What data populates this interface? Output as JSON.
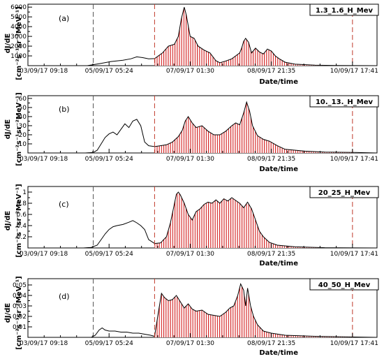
{
  "chart_data": [
    {
      "type": "area",
      "letter": "(a)",
      "title": "1.3_1.6_H_Mev",
      "ylabel": "dJ/dE",
      "yunit": "[cm⁻²s⁻¹sr⁻²MeV⁻¹]",
      "xlabel": "Date/time",
      "xticks": [
        "03/09/17 09:18",
        "05/09/17 05:24",
        "07/09/17 01:30",
        "08/09/17 21:35",
        "10/09/17 17:41"
      ],
      "yticks": [
        1000,
        2000,
        3000,
        4000,
        5000,
        6000
      ],
      "ylim": [
        0,
        6300
      ],
      "xlim_hours": [
        0,
        176.4
      ],
      "vertical_dashed_lines_hours": [
        33,
        64,
        164
      ],
      "red_hatched_range_hours": [
        64,
        164
      ],
      "points": [
        [
          0,
          0
        ],
        [
          30,
          0
        ],
        [
          36,
          200
        ],
        [
          42,
          420
        ],
        [
          48,
          560
        ],
        [
          52,
          700
        ],
        [
          55,
          900
        ],
        [
          58,
          820
        ],
        [
          61,
          700
        ],
        [
          64,
          720
        ],
        [
          68,
          1300
        ],
        [
          71,
          2000
        ],
        [
          74,
          2200
        ],
        [
          76,
          3000
        ],
        [
          77.5,
          4800
        ],
        [
          79,
          6000
        ],
        [
          80,
          5200
        ],
        [
          82,
          3000
        ],
        [
          84,
          2800
        ],
        [
          86,
          2000
        ],
        [
          89,
          1600
        ],
        [
          92,
          1300
        ],
        [
          95,
          500
        ],
        [
          97,
          300
        ],
        [
          100,
          480
        ],
        [
          103,
          700
        ],
        [
          105,
          1000
        ],
        [
          107,
          1300
        ],
        [
          108,
          1800
        ],
        [
          109,
          2500
        ],
        [
          110,
          2800
        ],
        [
          111.5,
          2400
        ],
        [
          113,
          1300
        ],
        [
          115,
          1800
        ],
        [
          117,
          1400
        ],
        [
          119,
          1200
        ],
        [
          121,
          1700
        ],
        [
          123,
          1500
        ],
        [
          125,
          1000
        ],
        [
          127,
          700
        ],
        [
          130,
          350
        ],
        [
          135,
          150
        ],
        [
          145,
          60
        ],
        [
          155,
          20
        ],
        [
          165,
          5
        ],
        [
          176,
          0
        ]
      ]
    },
    {
      "type": "area",
      "letter": "(b)",
      "title": "10._13._H_Mev",
      "ylabel": "dJ/dE",
      "yunit": "[cm⁻²s⁻¹sr⁻²MeV⁻¹]",
      "xlabel": "Date/time",
      "xticks": [
        "03/09/17 09:18",
        "05/09/17 05:24",
        "07/09/17 01:30",
        "08/09/17 21:35",
        "10/09/17 17:41"
      ],
      "yticks": [
        10,
        20,
        30,
        40,
        50,
        60
      ],
      "ylim": [
        0,
        63
      ],
      "xlim_hours": [
        0,
        176.4
      ],
      "vertical_dashed_lines_hours": [
        33,
        64,
        164
      ],
      "red_hatched_range_hours": [
        64,
        164
      ],
      "points": [
        [
          0,
          0
        ],
        [
          29,
          0
        ],
        [
          33,
          0.5
        ],
        [
          35,
          3
        ],
        [
          37,
          10
        ],
        [
          39,
          17
        ],
        [
          41,
          21
        ],
        [
          43,
          23
        ],
        [
          45,
          20
        ],
        [
          47,
          26
        ],
        [
          49,
          32
        ],
        [
          51,
          28
        ],
        [
          53,
          35
        ],
        [
          55,
          37
        ],
        [
          57,
          30
        ],
        [
          59,
          12
        ],
        [
          61,
          8
        ],
        [
          64,
          7
        ],
        [
          67,
          8
        ],
        [
          70,
          9
        ],
        [
          73,
          12
        ],
        [
          76,
          18
        ],
        [
          78,
          25
        ],
        [
          79.5,
          35
        ],
        [
          81,
          40
        ],
        [
          83,
          33
        ],
        [
          85,
          28
        ],
        [
          88,
          30
        ],
        [
          91,
          24
        ],
        [
          94,
          20
        ],
        [
          97,
          20
        ],
        [
          100,
          24
        ],
        [
          103,
          30
        ],
        [
          105,
          33
        ],
        [
          107,
          31
        ],
        [
          109,
          44
        ],
        [
          110.5,
          56
        ],
        [
          112,
          46
        ],
        [
          113.5,
          30
        ],
        [
          116,
          19
        ],
        [
          119,
          15
        ],
        [
          122,
          13
        ],
        [
          126,
          8
        ],
        [
          130,
          4
        ],
        [
          140,
          2
        ],
        [
          150,
          1
        ],
        [
          165,
          0.5
        ],
        [
          176,
          0
        ]
      ]
    },
    {
      "type": "area",
      "letter": "(c)",
      "title": "20_25_H_Mev",
      "ylabel": "dJ/dE",
      "yunit": "[cm⁻²s⁻¹sr⁻²MeV⁻¹]",
      "xlabel": "Date/time",
      "xticks": [
        "03/09/17 09:18",
        "05/09/17 05:24",
        "07/09/17 01:30",
        "08/09/17 21:35",
        "10/09/17 17:41"
      ],
      "yticks": [
        0.2,
        0.4,
        0.6,
        0.8,
        1
      ],
      "ylim": [
        0,
        1.1
      ],
      "xlim_hours": [
        0,
        176.4
      ],
      "vertical_dashed_lines_hours": [
        33,
        64,
        164
      ],
      "red_hatched_range_hours": [
        64,
        164
      ],
      "points": [
        [
          0,
          0
        ],
        [
          28,
          0
        ],
        [
          32,
          0.01
        ],
        [
          35,
          0.05
        ],
        [
          37,
          0.15
        ],
        [
          39,
          0.25
        ],
        [
          41,
          0.33
        ],
        [
          43,
          0.38
        ],
        [
          45,
          0.4
        ],
        [
          48,
          0.42
        ],
        [
          51,
          0.46
        ],
        [
          53,
          0.49
        ],
        [
          55,
          0.45
        ],
        [
          57,
          0.4
        ],
        [
          59,
          0.33
        ],
        [
          61,
          0.15
        ],
        [
          64,
          0.08
        ],
        [
          67,
          0.09
        ],
        [
          70,
          0.2
        ],
        [
          72,
          0.45
        ],
        [
          73.5,
          0.7
        ],
        [
          75,
          0.96
        ],
        [
          76,
          1.0
        ],
        [
          77,
          0.95
        ],
        [
          79,
          0.8
        ],
        [
          81,
          0.6
        ],
        [
          83,
          0.5
        ],
        [
          85,
          0.65
        ],
        [
          87,
          0.7
        ],
        [
          89,
          0.78
        ],
        [
          91,
          0.82
        ],
        [
          93,
          0.8
        ],
        [
          95,
          0.86
        ],
        [
          97,
          0.8
        ],
        [
          99,
          0.88
        ],
        [
          101,
          0.84
        ],
        [
          103,
          0.9
        ],
        [
          105,
          0.85
        ],
        [
          107,
          0.8
        ],
        [
          109,
          0.72
        ],
        [
          111,
          0.82
        ],
        [
          113,
          0.7
        ],
        [
          115,
          0.5
        ],
        [
          117,
          0.3
        ],
        [
          119,
          0.2
        ],
        [
          122,
          0.1
        ],
        [
          126,
          0.05
        ],
        [
          135,
          0.02
        ],
        [
          150,
          0.005
        ],
        [
          176,
          0
        ]
      ]
    },
    {
      "type": "area",
      "letter": "(d)",
      "title": "40_50_H_Mev",
      "ylabel": "dJ/dE",
      "yunit": "[cm⁻²s⁻¹sr⁻²MeV⁻¹]",
      "xlabel": "Date/time",
      "xticks": [
        "03/09/17 09:18",
        "05/09/17 05:24",
        "07/09/17 01:30",
        "08/09/17 21:35",
        "10/09/17 17:41"
      ],
      "yticks": [
        0.01,
        0.02,
        0.03,
        0.04,
        0.05
      ],
      "ylim": [
        0,
        0.056
      ],
      "xlim_hours": [
        0,
        176.4
      ],
      "vertical_dashed_lines_hours": [
        33,
        64,
        164
      ],
      "red_hatched_range_hours": [
        64,
        164
      ],
      "points": [
        [
          0,
          0
        ],
        [
          32,
          0
        ],
        [
          34,
          0.002
        ],
        [
          36,
          0.007
        ],
        [
          37.5,
          0.009
        ],
        [
          39,
          0.007
        ],
        [
          41,
          0.006
        ],
        [
          44,
          0.006
        ],
        [
          47,
          0.005
        ],
        [
          50,
          0.005
        ],
        [
          53,
          0.004
        ],
        [
          56,
          0.004
        ],
        [
          59,
          0.003
        ],
        [
          62,
          0.002
        ],
        [
          64,
          0.001
        ],
        [
          66,
          0.025
        ],
        [
          67.5,
          0.042
        ],
        [
          69,
          0.038
        ],
        [
          71,
          0.035
        ],
        [
          73,
          0.036
        ],
        [
          75,
          0.04
        ],
        [
          77,
          0.034
        ],
        [
          79,
          0.028
        ],
        [
          81,
          0.032
        ],
        [
          83,
          0.027
        ],
        [
          85,
          0.025
        ],
        [
          88,
          0.026
        ],
        [
          91,
          0.022
        ],
        [
          94,
          0.021
        ],
        [
          97,
          0.02
        ],
        [
          100,
          0.024
        ],
        [
          102,
          0.028
        ],
        [
          104,
          0.03
        ],
        [
          106,
          0.04
        ],
        [
          107.5,
          0.051
        ],
        [
          109,
          0.045
        ],
        [
          110,
          0.03
        ],
        [
          111,
          0.047
        ],
        [
          112.5,
          0.03
        ],
        [
          114,
          0.02
        ],
        [
          116,
          0.012
        ],
        [
          119,
          0.006
        ],
        [
          123,
          0.004
        ],
        [
          130,
          0.002
        ],
        [
          145,
          0.001
        ],
        [
          176,
          0
        ]
      ]
    }
  ]
}
